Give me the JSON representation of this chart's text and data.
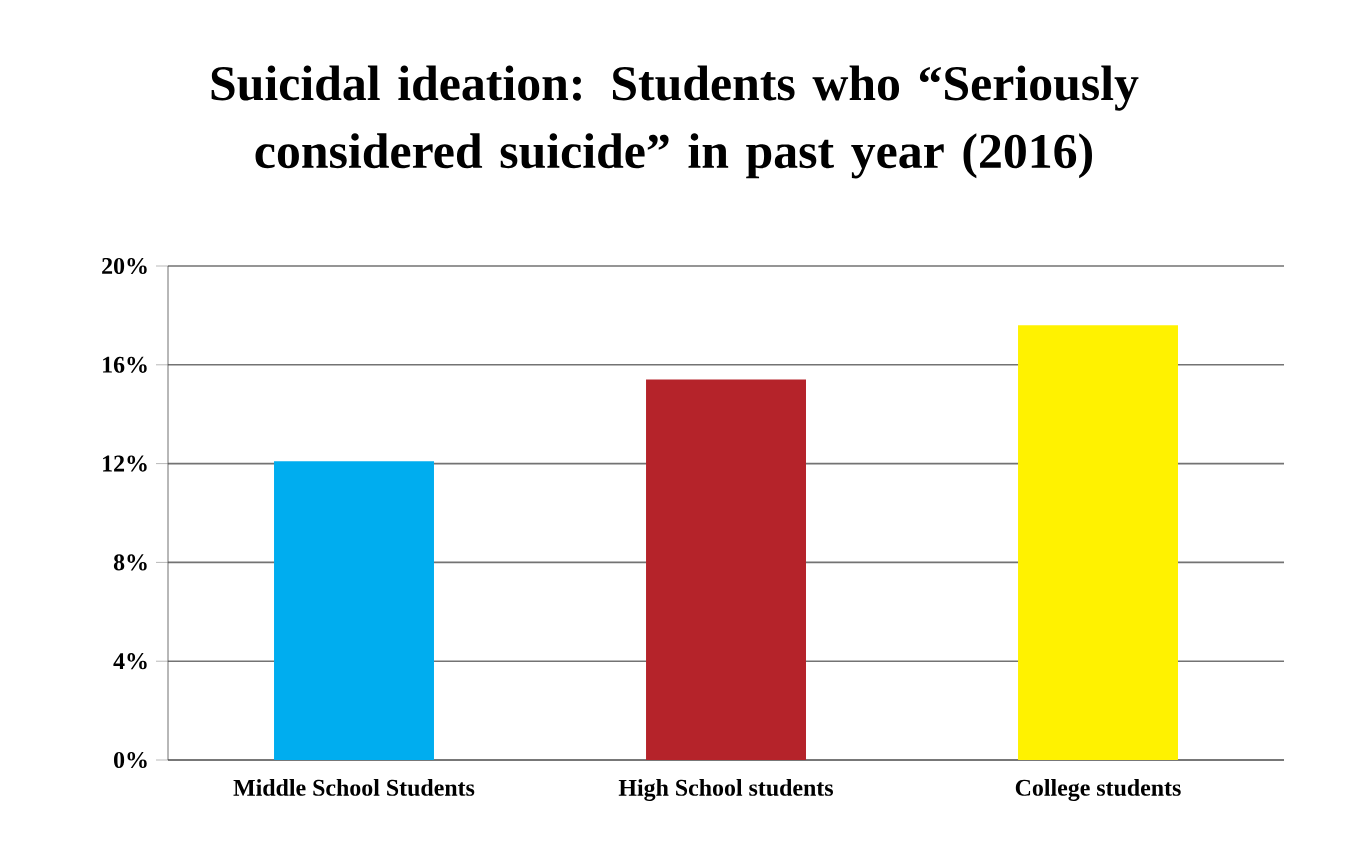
{
  "chart_data": {
    "type": "bar",
    "title": "Suicidal ideation: Students who “Seriously considered suicide” in past year (2016)",
    "categories": [
      "Middle School Students",
      "High School students",
      "College students"
    ],
    "values": [
      12.1,
      15.4,
      17.6
    ],
    "colors": [
      "#00adef",
      "#b5232a",
      "#fff200"
    ],
    "ylim": [
      0,
      20
    ],
    "yticks": [
      {
        "value": 0,
        "label": "0%"
      },
      {
        "value": 4,
        "label": "4%"
      },
      {
        "value": 8,
        "label": "8%"
      },
      {
        "value": 12,
        "label": "12%"
      },
      {
        "value": 16,
        "label": "16%"
      },
      {
        "value": 20,
        "label": "20%"
      }
    ],
    "grid": "y"
  }
}
